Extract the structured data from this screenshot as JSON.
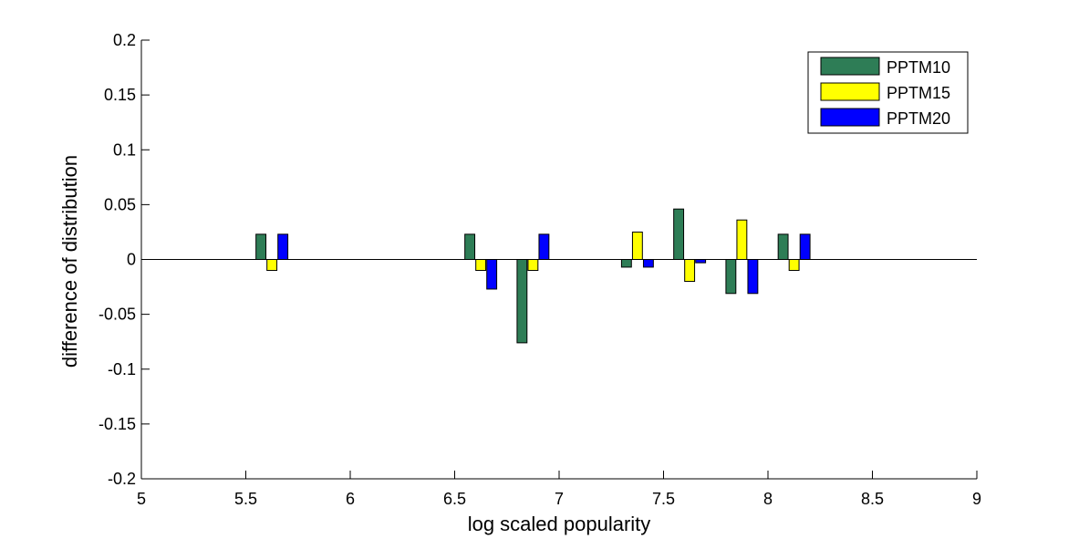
{
  "chart_data": {
    "type": "bar",
    "xlabel": "log scaled popularity",
    "ylabel": "difference of distribution",
    "xlim": [
      5,
      9
    ],
    "ylim": [
      -0.2,
      0.2
    ],
    "xticks": [
      5,
      5.5,
      6,
      6.5,
      7,
      7.5,
      8,
      8.5,
      9
    ],
    "yticks": [
      0.2,
      0.15,
      0.1,
      0.05,
      0,
      -0.05,
      -0.1,
      -0.15,
      -0.2
    ],
    "xtick_labels": [
      "5",
      "5.5",
      "6",
      "6.5",
      "7",
      "7.5",
      "8",
      "8.5",
      "9"
    ],
    "ytick_labels": [
      "0.2",
      "0.15",
      "0.1",
      "0.05",
      "0",
      "-0.05",
      "-0.1",
      "-0.15",
      "-0.2"
    ],
    "grid": false,
    "legend_position": "top-right",
    "x": [
      5.625,
      6.625,
      6.875,
      7.375,
      7.625,
      7.875,
      8.125
    ],
    "series": [
      {
        "name": "PPTM10",
        "color": "#2e7d56",
        "values": [
          0.023,
          0.023,
          -0.076,
          -0.007,
          0.046,
          -0.031,
          0.023
        ]
      },
      {
        "name": "PPTM15",
        "color": "#ffff00",
        "values": [
          -0.01,
          -0.01,
          -0.01,
          0.025,
          -0.02,
          0.036,
          -0.01
        ]
      },
      {
        "name": "PPTM20",
        "color": "#0000ff",
        "values": [
          0.023,
          -0.027,
          0.023,
          -0.007,
          -0.003,
          -0.031,
          0.023
        ]
      }
    ]
  }
}
